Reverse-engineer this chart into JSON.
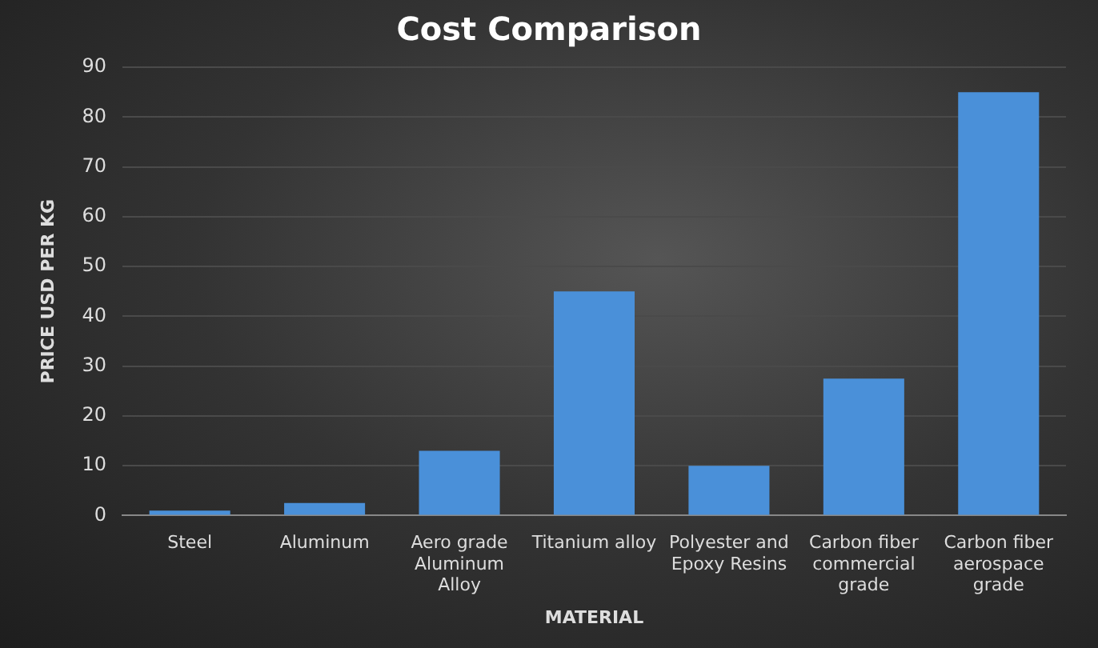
{
  "chart_data": {
    "type": "bar",
    "title": "Cost Comparison",
    "xlabel": "MATERIAL",
    "ylabel": "PRICE USD PER KG",
    "categories": [
      "Steel",
      "Aluminum",
      "Aero grade Aluminum Alloy",
      "Titanium alloy",
      "Polyester and Epoxy Resins",
      "Carbon fiber commercial grade",
      "Carbon fiber aerospace grade"
    ],
    "values": [
      1,
      2.5,
      13,
      45,
      10,
      27.5,
      85
    ],
    "color": "#4a90d9",
    "ylim": [
      0,
      90
    ],
    "yticks": [
      0,
      10,
      20,
      30,
      40,
      50,
      60,
      70,
      80,
      90
    ],
    "grid": "y",
    "legend": false
  }
}
